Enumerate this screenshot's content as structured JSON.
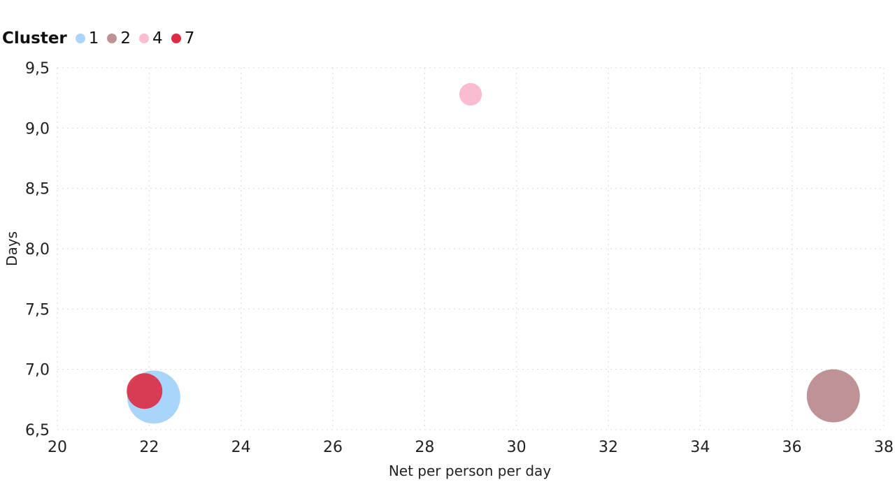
{
  "chart_data": {
    "type": "scatter",
    "title": "",
    "xlabel": "Net per person per day",
    "ylabel": "Days",
    "xlim": [
      20,
      38
    ],
    "ylim": [
      6.5,
      9.5
    ],
    "x_ticks": [
      "20",
      "22",
      "24",
      "26",
      "28",
      "30",
      "32",
      "34",
      "36",
      "38"
    ],
    "y_ticks": [
      "6,5",
      "7,0",
      "7,5",
      "8,0",
      "8,5",
      "9,0",
      "9,5"
    ],
    "grid": true,
    "legend": {
      "title": "Cluster",
      "placement": "top-left",
      "entries": [
        {
          "label": "1",
          "color": "#a9d5fb"
        },
        {
          "label": "2",
          "color": "#bf9296"
        },
        {
          "label": "4",
          "color": "#f9bcd0"
        },
        {
          "label": "7",
          "color": "#dc2b43"
        }
      ]
    },
    "series": [
      {
        "name": "1",
        "color": "#a9d5fb",
        "points": [
          {
            "x": 22.1,
            "y": 6.77,
            "size": 1.0
          }
        ]
      },
      {
        "name": "2",
        "color": "#bf9296",
        "points": [
          {
            "x": 36.9,
            "y": 6.78,
            "size": 1.0
          }
        ]
      },
      {
        "name": "4",
        "color": "#f9bcd0",
        "points": [
          {
            "x": 29.0,
            "y": 9.28,
            "size": 0.18
          }
        ]
      },
      {
        "name": "7",
        "color": "#dc2b43",
        "points": [
          {
            "x": 21.9,
            "y": 6.82,
            "size": 0.45
          }
        ]
      }
    ]
  }
}
